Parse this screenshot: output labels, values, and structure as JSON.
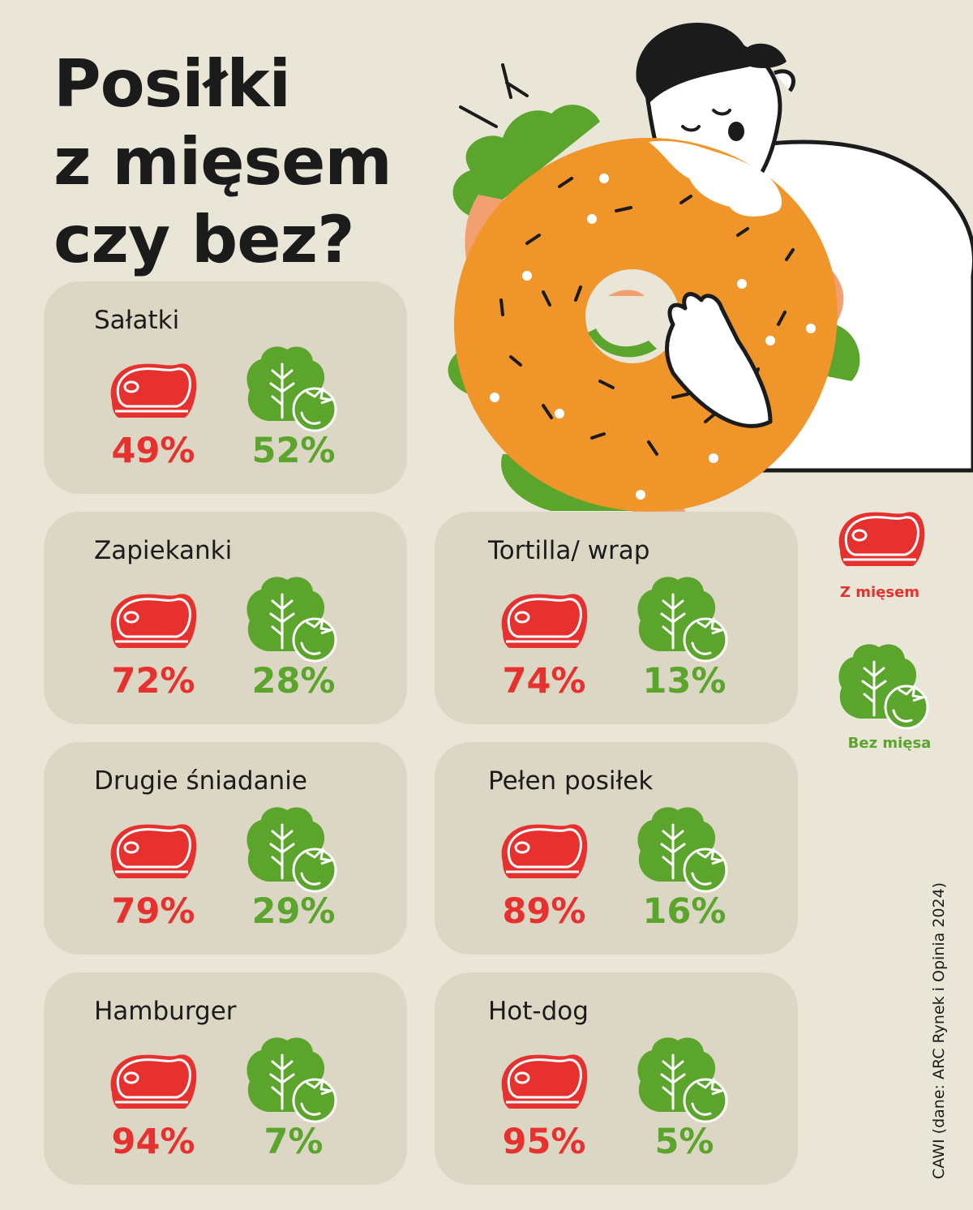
{
  "title": {
    "line1": "Posiłki",
    "line2": "z mięsem",
    "line3": "czy bez?"
  },
  "cards": [
    {
      "label": "Sałatki",
      "meat": "49%",
      "veg": "52%"
    },
    {
      "label": "Zapiekanki",
      "meat": "72%",
      "veg": "28%"
    },
    {
      "label": "Tortilla/ wrap",
      "meat": "74%",
      "veg": "13%"
    },
    {
      "label": "Drugie śniadanie",
      "meat": "79%",
      "veg": "29%"
    },
    {
      "label": "Pełen posiłek",
      "meat": "89%",
      "veg": "16%"
    },
    {
      "label": "Hamburger",
      "meat": "94%",
      "veg": "7%"
    },
    {
      "label": "Hot-dog",
      "meat": "95%",
      "veg": "5%"
    }
  ],
  "legend": {
    "meat_label": "Z mięsem",
    "veg_label": "Bez mięsa"
  },
  "source": "CAWI (dane: ARC Rynek i Opinia 2024)",
  "colors": {
    "meat": "#e6312f",
    "veg": "#5ba52c",
    "background": "#e9e5d7",
    "card": "#dcd6c4",
    "bagel": "#f0952a"
  },
  "icons": {
    "meat": "steak-icon",
    "veg": "lettuce-tomato-icon"
  }
}
